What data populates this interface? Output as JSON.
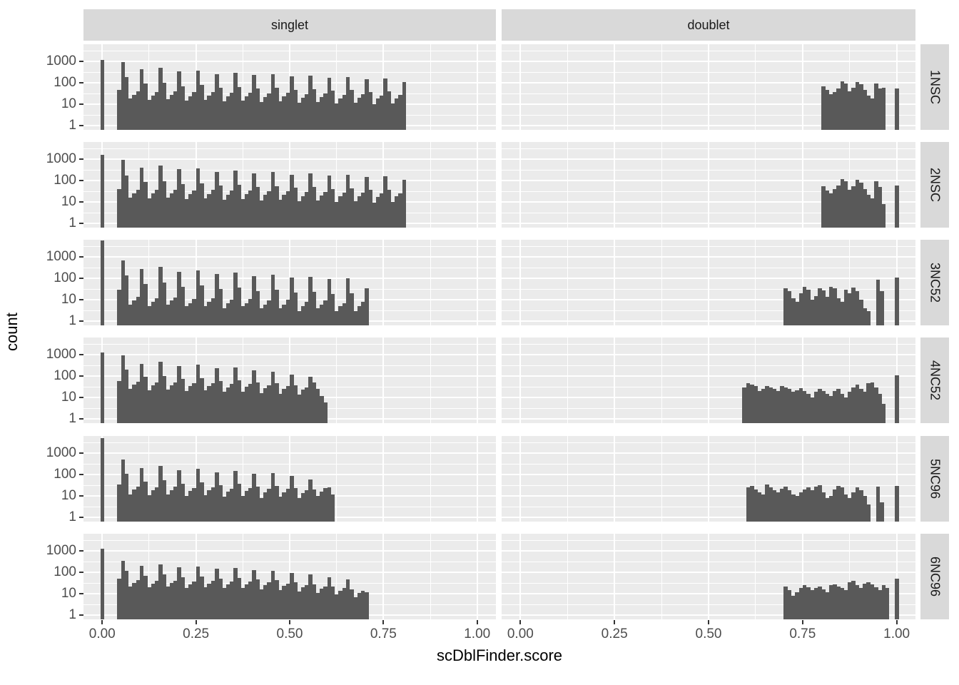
{
  "figure": {
    "x_axis_title": "scDblFinder.score",
    "y_axis_title": "count"
  },
  "facets": {
    "columns": [
      "singlet",
      "doublet"
    ],
    "rows": [
      "1NSC",
      "2NSC",
      "3NC52",
      "4NC52",
      "5NC96",
      "6NC96"
    ]
  },
  "axes": {
    "x": {
      "tick_labels": [
        "0.00",
        "0.25",
        "0.50",
        "0.75",
        "1.00"
      ],
      "tick_values": [
        0,
        0.25,
        0.5,
        0.75,
        1
      ],
      "minor_values": [
        0.125,
        0.375,
        0.625,
        0.875
      ],
      "range": [
        -0.05,
        1.05
      ]
    },
    "y": {
      "scale": "log10",
      "tick_labels": [
        "1000",
        "100",
        "10",
        "1"
      ],
      "tick_values": [
        1000,
        100,
        10,
        1
      ],
      "minor_values": [
        3.1623,
        31.623,
        316.23,
        3162.3
      ]
    }
  },
  "style": {
    "bar_color": "#595959",
    "panel_bg": "#ebebeb",
    "strip_bg": "#d9d9d9",
    "grid_color": "#ffffff",
    "axis_text_color": "#4d4d4d",
    "tick_mark_color": "#333333"
  },
  "chart_data": {
    "type": "bar",
    "subtype": "faceted-histogram",
    "bin_width": 0.01,
    "x_variable": "scDblFinder.score",
    "y_variable": "count",
    "y_scale": "log10",
    "panels": [
      {
        "facet_row": "1NSC",
        "facet_col": "singlet",
        "segments": [
          {
            "start": -0.005,
            "counts": [
              1200
            ]
          },
          {
            "start": 0.04,
            "counts": [
              45,
              900,
              180,
              18,
              28,
              40,
              420,
              90,
              16,
              26,
              38,
              520,
              100,
              17,
              27,
              39,
              330,
              70,
              15,
              24,
              36,
              380,
              80,
              16,
              25,
              37,
              260,
              60,
              14,
              23,
              34,
              300,
              65,
              15,
              24,
              35,
              230,
              55,
              13,
              22,
              32,
              260,
              58,
              14,
              23,
              33,
              200,
              48,
              12,
              20,
              30,
              220,
              52,
              13,
              21,
              31,
              170,
              42,
              11,
              19,
              28,
              190,
              45,
              12,
              20,
              29,
              150,
              38,
              10,
              18,
              26,
              160,
              40,
              11,
              19,
              27,
              110
            ]
          }
        ]
      },
      {
        "facet_row": "1NSC",
        "facet_col": "doublet",
        "segments": [
          {
            "start": 0.8,
            "counts": [
              70,
              45,
              30,
              38,
              55,
              120,
              95,
              40,
              60,
              110,
              85,
              45,
              25,
              18,
              95,
              55,
              60
            ]
          },
          {
            "start": 0.995,
            "counts": [
              55
            ]
          }
        ]
      },
      {
        "facet_row": "2NSC",
        "facet_col": "singlet",
        "segments": [
          {
            "start": -0.005,
            "counts": [
              1600
            ]
          },
          {
            "start": 0.04,
            "counts": [
              40,
              950,
              170,
              16,
              26,
              38,
              400,
              85,
              15,
              25,
              36,
              500,
              95,
              16,
              26,
              38,
              340,
              68,
              14,
              23,
              35,
              360,
              75,
              15,
              24,
              36,
              250,
              58,
              13,
              22,
              33,
              290,
              62,
              14,
              23,
              34,
              220,
              52,
              12,
              21,
              31,
              250,
              56,
              13,
              22,
              32,
              190,
              46,
              11,
              19,
              29,
              210,
              50,
              12,
              20,
              30,
              165,
              40,
              10,
              18,
              27,
              180,
              43,
              11,
              19,
              28,
              145,
              36,
              9,
              17,
              25,
              155,
              38,
              10,
              18,
              26,
              105
            ]
          }
        ]
      },
      {
        "facet_row": "2NSC",
        "facet_col": "doublet",
        "segments": [
          {
            "start": 0.8,
            "counts": [
              55,
              35,
              25,
              40,
              60,
              115,
              90,
              38,
              55,
              105,
              80,
              40,
              22,
              15,
              90,
              50,
              8
            ]
          },
          {
            "start": 0.995,
            "counts": [
              60
            ]
          }
        ]
      },
      {
        "facet_row": "3NC52",
        "facet_col": "singlet",
        "segments": [
          {
            "start": -0.005,
            "counts": [
              6000
            ]
          },
          {
            "start": 0.04,
            "counts": [
              30,
              700,
              140,
              6,
              9,
              14,
              280,
              55,
              5,
              8,
              12,
              330,
              65,
              6,
              9,
              13,
              200,
              40,
              5,
              7,
              11,
              230,
              46,
              5,
              8,
              12,
              160,
              32,
              4,
              7,
              10,
              180,
              36,
              5,
              7,
              11,
              130,
              26,
              4,
              6,
              9,
              150,
              30,
              4,
              6,
              10,
              110,
              22,
              3,
              5,
              8,
              120,
              24,
              4,
              6,
              9,
              90,
              18,
              3,
              5,
              7,
              100,
              20,
              3,
              5,
              8,
              35
            ]
          }
        ]
      },
      {
        "facet_row": "3NC52",
        "facet_col": "doublet",
        "segments": [
          {
            "start": 0.7,
            "counts": [
              35,
              25,
              12,
              8,
              20,
              40,
              30,
              10,
              15,
              35,
              28,
              14,
              40,
              35,
              12,
              8,
              30,
              20,
              38,
              25,
              10,
              4,
              3
            ]
          },
          {
            "start": 0.945,
            "counts": [
              85,
              25
            ]
          },
          {
            "start": 0.995,
            "counts": [
              110
            ]
          }
        ]
      },
      {
        "facet_row": "4NC52",
        "facet_col": "singlet",
        "segments": [
          {
            "start": -0.005,
            "counts": [
              1300
            ]
          },
          {
            "start": 0.04,
            "counts": [
              60,
              900,
              200,
              25,
              40,
              55,
              380,
              90,
              22,
              36,
              50,
              450,
              100,
              23,
              38,
              52,
              300,
              75,
              20,
              34,
              46,
              330,
              80,
              21,
              35,
              48,
              230,
              60,
              18,
              30,
              42,
              250,
              65,
              19,
              32,
              44,
              180,
              50,
              16,
              28,
              38,
              160,
              45,
              15,
              26,
              35,
              120,
              38,
              14,
              24,
              30,
              90,
              50,
              25,
              12,
              6
            ]
          }
        ]
      },
      {
        "facet_row": "4NC52",
        "facet_col": "doublet",
        "segments": [
          {
            "start": 0.59,
            "counts": [
              30,
              45,
              40,
              35,
              20,
              25,
              35,
              30,
              25,
              20,
              35,
              30,
              25,
              18,
              22,
              28,
              20,
              15,
              10,
              18,
              25,
              20,
              15,
              12,
              20,
              25,
              15,
              10,
              18,
              30,
              40,
              25,
              18,
              45,
              50,
              30,
              15,
              5
            ]
          },
          {
            "start": 0.995,
            "counts": [
              110
            ]
          }
        ]
      },
      {
        "facet_row": "5NC96",
        "facet_col": "singlet",
        "segments": [
          {
            "start": -0.005,
            "counts": [
              5000
            ]
          },
          {
            "start": 0.04,
            "counts": [
              35,
              500,
              110,
              12,
              20,
              28,
              200,
              48,
              11,
              18,
              26,
              260,
              56,
              12,
              19,
              27,
              160,
              38,
              10,
              17,
              24,
              190,
              44,
              11,
              18,
              25,
              130,
              32,
              9,
              16,
              22,
              150,
              36,
              10,
              17,
              23,
              110,
              28,
              8,
              15,
              21,
              120,
              30,
              9,
              15,
              22,
              85,
              24,
              8,
              14,
              19,
              60,
              20,
              10,
              16,
              24,
              25,
              12
            ]
          }
        ]
      },
      {
        "facet_row": "5NC96",
        "facet_col": "doublet",
        "segments": [
          {
            "start": 0.6,
            "counts": [
              25,
              30,
              20,
              15,
              12,
              35,
              25,
              18,
              15,
              22,
              28,
              18,
              12,
              10,
              15,
              20,
              25,
              18,
              28,
              32,
              15,
              8,
              10,
              20,
              30,
              25,
              12,
              8,
              15,
              25,
              18,
              10,
              4
            ]
          },
          {
            "start": 0.945,
            "counts": [
              28,
              5
            ]
          },
          {
            "start": 0.995,
            "counts": [
              30
            ]
          }
        ]
      },
      {
        "facet_row": "6NC96",
        "facet_col": "singlet",
        "segments": [
          {
            "start": -0.005,
            "counts": [
              1300
            ]
          },
          {
            "start": 0.04,
            "counts": [
              50,
              350,
              120,
              22,
              32,
              42,
              200,
              70,
              20,
              30,
              40,
              230,
              78,
              21,
              31,
              41,
              170,
              60,
              19,
              28,
              38,
              190,
              64,
              20,
              29,
              39,
              150,
              52,
              18,
              27,
              36,
              160,
              55,
              18,
              27,
              37,
              130,
              46,
              16,
              25,
              33,
              120,
              42,
              15,
              23,
              30,
              95,
              34,
              13,
              20,
              26,
              80,
              28,
              11,
              17,
              22,
              60,
              22,
              9,
              14,
              18,
              45,
              16,
              7,
              11,
              14,
              12
            ]
          }
        ]
      },
      {
        "facet_row": "6NC96",
        "facet_col": "doublet",
        "segments": [
          {
            "start": 0.7,
            "counts": [
              22,
              15,
              8,
              12,
              18,
              25,
              20,
              15,
              18,
              22,
              16,
              12,
              25,
              28,
              22,
              18,
              15,
              35,
              40,
              25,
              18,
              30,
              35,
              28,
              20,
              15,
              25,
              18
            ]
          },
          {
            "start": 0.995,
            "counts": [
              50
            ]
          }
        ]
      }
    ]
  }
}
